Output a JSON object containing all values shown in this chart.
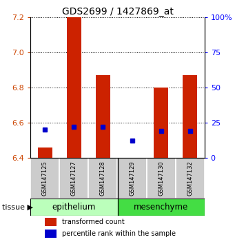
{
  "title": "GDS2699 / 1427869_at",
  "samples": [
    "GSM147125",
    "GSM147127",
    "GSM147128",
    "GSM147129",
    "GSM147130",
    "GSM147132"
  ],
  "red_values": [
    6.46,
    7.2,
    6.87,
    6.4,
    6.8,
    6.87
  ],
  "blue_values_pct": [
    20,
    22,
    22,
    12,
    19,
    19
  ],
  "ylim_left": [
    6.4,
    7.2
  ],
  "ylim_right": [
    0,
    100
  ],
  "yticks_left": [
    6.4,
    6.6,
    6.8,
    7.0,
    7.2
  ],
  "yticks_right": [
    0,
    25,
    50,
    75,
    100
  ],
  "ytick_labels_right": [
    "0",
    "25",
    "50",
    "75",
    "100%"
  ],
  "bar_color": "#cc2200",
  "dot_color": "#0000cc",
  "base_value": 6.4,
  "background_color": "#ffffff",
  "sample_box_color": "#cccccc",
  "group_color_epithelium": "#bbffbb",
  "group_color_mesenchyme": "#44dd44",
  "legend_red_label": "transformed count",
  "legend_blue_label": "percentile rank within the sample",
  "tissue_label": "tissue",
  "groups": [
    {
      "name": "epithelium",
      "start": 0,
      "end": 2
    },
    {
      "name": "mesenchyme",
      "start": 3,
      "end": 5
    }
  ]
}
